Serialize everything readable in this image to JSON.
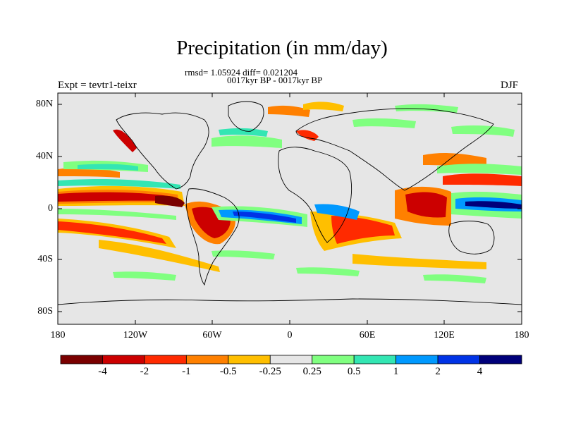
{
  "title": "Precipitation (in mm/day)",
  "subtitle_stats": "rmsd= 1.05924 diff= 0.021204",
  "subtitle_periods": "0017kyr BP - 0017kyr BP",
  "left_string": "Expt = tevtr1-teixr",
  "right_string": "DJF",
  "lat_labels": [
    "80N",
    "40N",
    "0",
    "40S",
    "80S"
  ],
  "lon_labels": [
    "180",
    "120W",
    "60W",
    "0",
    "60E",
    "120E",
    "180"
  ],
  "colorbar": {
    "labels": [
      "-4",
      "-2",
      "-1",
      "-0.5",
      "-0.25",
      "0.25",
      "0.5",
      "1",
      "2",
      "4"
    ],
    "colors": [
      "#7a0000",
      "#cc0000",
      "#ff2a00",
      "#ff8000",
      "#ffbf00",
      "#e6e6e6",
      "#80ff80",
      "#33e6b3",
      "#0099ff",
      "#0033e6",
      "#00007a"
    ]
  }
}
